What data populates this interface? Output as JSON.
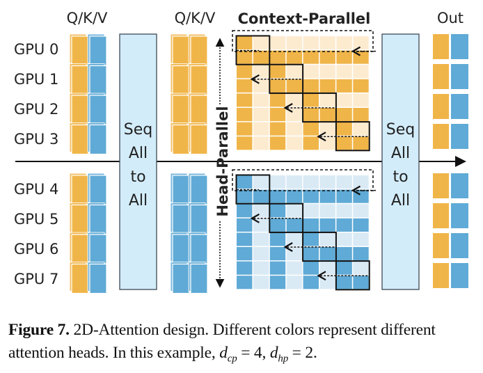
{
  "colors": {
    "orange": "#f0b549",
    "orange_light": "#fdebd0",
    "blue": "#5faad6",
    "blue_light": "#d9eaf5",
    "seq_box": "#d3ecfa"
  },
  "labels": {
    "qkv_left": "Q/K/V",
    "qkv_right": "Q/K/V",
    "out": "Out",
    "context_parallel": "Context-Parallel",
    "head_parallel": "Head-Parallel",
    "gpus": [
      "GPU 0",
      "GPU 1",
      "GPU 2",
      "GPU 3",
      "GPU 4",
      "GPU 5",
      "GPU 6",
      "GPU 7"
    ],
    "seq_all_to_all_1": [
      "Seq",
      "All",
      "to",
      "All"
    ],
    "seq_all_to_all_2": [
      "Seq",
      "All",
      "to",
      "All"
    ]
  },
  "caption": {
    "figure_label": "Figure 7.",
    "text1": " 2D-Attention design. Different colors represent different attention heads. In this example, ",
    "var_cp": "d",
    "sub_cp": "cp",
    "eq1": " = 4, ",
    "var_hp": "d",
    "sub_hp": "hp",
    "eq2": " = 2."
  }
}
